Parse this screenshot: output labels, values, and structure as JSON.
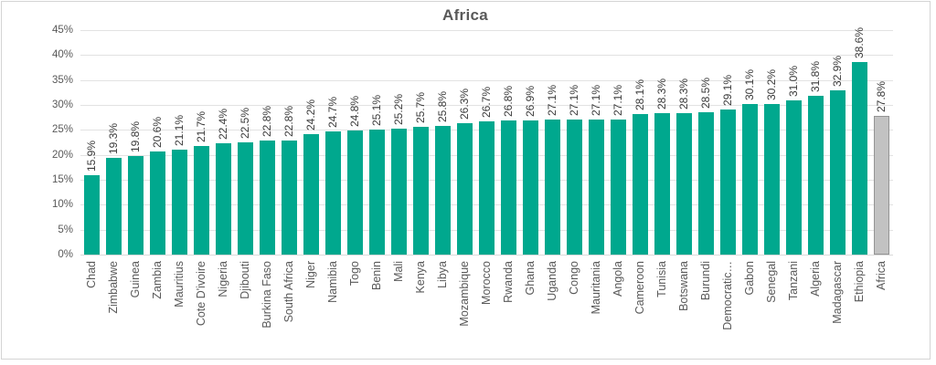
{
  "chart_data": {
    "type": "bar",
    "title": "Africa",
    "categories": [
      "Chad",
      "Zimbabwe",
      "Guinea",
      "Zambia",
      "Mauritius",
      "Cote D'ivoire",
      "Nigeria",
      "Djibouti",
      "Burkina Faso",
      "South Africa",
      "Niger",
      "Namibia",
      "Togo",
      "Benin",
      "Mali",
      "Kenya",
      "Libya",
      "Mozambique",
      "Morocco",
      "Rwanda",
      "Ghana",
      "Uganda",
      "Congo",
      "Mauritania",
      "Angola",
      "Cameroon",
      "Tunisia",
      "Botswana",
      "Burundi",
      "Democratic…",
      "Gabon",
      "Senegal",
      "Tanzani",
      "Algeria",
      "Madagascar",
      "Ethiopia",
      "Africa"
    ],
    "values": [
      15.9,
      19.3,
      19.8,
      20.6,
      21.1,
      21.7,
      22.4,
      22.5,
      22.8,
      22.8,
      24.2,
      24.7,
      24.8,
      25.1,
      25.2,
      25.7,
      25.8,
      26.3,
      26.7,
      26.8,
      26.9,
      27.1,
      27.1,
      27.1,
      27.1,
      28.1,
      28.3,
      28.3,
      28.5,
      29.1,
      30.1,
      30.2,
      31.0,
      31.8,
      32.9,
      38.6,
      27.8
    ],
    "value_labels": [
      "15.9%",
      "19.3%",
      "19.8%",
      "20.6%",
      "21.1%",
      "21.7%",
      "22.4%",
      "22.5%",
      "22.8%",
      "22.8%",
      "24.2%",
      "24.7%",
      "24.8%",
      "25.1%",
      "25.2%",
      "25.7%",
      "25.8%",
      "26.3%",
      "26.7%",
      "26.8%",
      "26.9%",
      "27.1%",
      "27.1%",
      "27.1%",
      "27.1%",
      "28.1%",
      "28.3%",
      "28.3%",
      "28.5%",
      "29.1%",
      "30.1%",
      "30.2%",
      "31.0%",
      "31.8%",
      "32.9%",
      "38.6%",
      "27.8%"
    ],
    "highlight_index": 36,
    "ylim": [
      0,
      45
    ],
    "ytick_step": 5,
    "ytick_labels": [
      "0%",
      "5%",
      "10%",
      "15%",
      "20%",
      "25%",
      "30%",
      "35%",
      "40%",
      "45%"
    ],
    "grid": true,
    "legend": "none",
    "bar_color": "#00A88E",
    "highlight_bar_color": "#C2C2C2",
    "highlight_bar_border": "#949494",
    "label_rotation_degrees": 90
  }
}
